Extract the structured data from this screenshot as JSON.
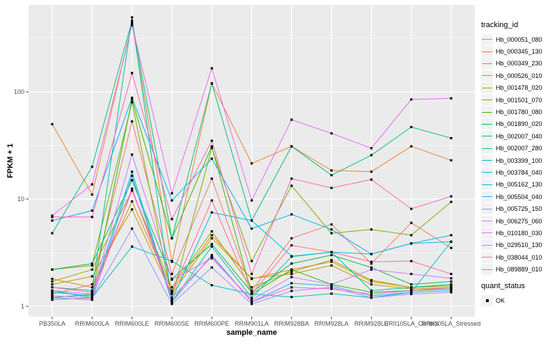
{
  "ui": {
    "panel_bg": "#EBEBEB",
    "grid_color": "#FFFFFF",
    "tick_color": "#333333",
    "tick_label_color": "#4D4D4D",
    "axis_title_color": "#000000",
    "legend_key_bg": "#F2F2F2",
    "point_color": "#000000"
  },
  "chart_data": {
    "type": "line",
    "title": "",
    "xlabel": "sample_name",
    "ylabel": "FPKM + 1",
    "y_scale": "log10",
    "y_ticks": [
      1,
      10,
      100
    ],
    "y_minor_ticks": [
      3.162,
      31.62,
      316.2
    ],
    "ylim": [
      0.8,
      640
    ],
    "grid": true,
    "legend_position": "right",
    "legend_title": "tracking_id",
    "quant_legend": {
      "title": "quant_status",
      "items": [
        {
          "label": "OK",
          "marker": "black-square"
        }
      ]
    },
    "categories": [
      "PB350LA",
      "RRIM600LA",
      "RRIM600LE",
      "RRIM600SE",
      "RRIM600PE",
      "RRIM901LA",
      "RRIM928BA",
      "RRIM928LA",
      "RRIM928LE",
      "RRII105LA_Control",
      "RRII105LA_Stressed"
    ],
    "series": [
      {
        "name": "Hb_000051_080",
        "color": "#F8766D",
        "values": [
          1.3,
          1.6,
          53,
          2.0,
          15.5,
          1.4,
          4.3,
          5.8,
          2.5,
          6.0,
          3.5
        ]
      },
      {
        "name": "Hb_000345_130",
        "color": "#EA8331",
        "values": [
          50,
          11,
          440,
          2.6,
          120,
          21.5,
          31,
          18.5,
          18,
          31,
          23
        ]
      },
      {
        "name": "Hb_000349_230",
        "color": "#D89000",
        "values": [
          1.8,
          1.5,
          9.5,
          1.4,
          4.6,
          1.8,
          2.2,
          2.6,
          1.7,
          1.5,
          1.6
        ]
      },
      {
        "name": "Hb_000526_010",
        "color": "#C09B00",
        "values": [
          1.6,
          1.9,
          8.0,
          1.3,
          4.3,
          1.82,
          2.0,
          2.4,
          1.6,
          1.45,
          1.5
        ]
      },
      {
        "name": "Hb_001478_020",
        "color": "#A3A500",
        "values": [
          1.7,
          2.2,
          12,
          1.5,
          5.0,
          1.5,
          2.1,
          2.7,
          1.75,
          1.5,
          1.55
        ]
      },
      {
        "name": "Hb_001501_070",
        "color": "#7CAE00",
        "values": [
          2.2,
          2.4,
          80,
          1.2,
          30,
          2.64,
          13.3,
          4.8,
          5.2,
          4.6,
          9.4
        ]
      },
      {
        "name": "Hb_001780_080",
        "color": "#39B600",
        "values": [
          1.2,
          1.3,
          85,
          4.3,
          31,
          1.3,
          2.2,
          1.6,
          1.35,
          1.4,
          1.45
        ]
      },
      {
        "name": "Hb_001890_020",
        "color": "#00BB4E",
        "values": [
          2.2,
          2.5,
          15,
          1.8,
          3.8,
          1.35,
          2.5,
          3.0,
          2.3,
          1.6,
          1.7
        ]
      },
      {
        "name": "Hb_002007_040",
        "color": "#00BF7D",
        "values": [
          4.8,
          20,
          460,
          4.3,
          120,
          6.3,
          31,
          16.7,
          25.7,
          47,
          37
        ]
      },
      {
        "name": "Hb_002007_280",
        "color": "#00C1A3",
        "values": [
          1.5,
          1.4,
          495,
          1.1,
          3.6,
          1.2,
          2.9,
          3.2,
          1.4,
          1.5,
          1.6
        ]
      },
      {
        "name": "Hb_003399_100",
        "color": "#00BFC4",
        "values": [
          1.4,
          1.2,
          3.6,
          2.64,
          1.57,
          1.3,
          1.22,
          1.31,
          1.2,
          1.35,
          4.0
        ]
      },
      {
        "name": "Hb_003784_040",
        "color": "#00BAE0",
        "values": [
          1.35,
          1.25,
          18,
          1.15,
          7.5,
          6.3,
          2.93,
          3.2,
          3.07,
          3.85,
          4.0
        ]
      },
      {
        "name": "Hb_005162_130",
        "color": "#00B0F6",
        "values": [
          6.3,
          7.8,
          88,
          9.7,
          23.8,
          5.3,
          7.2,
          5.2,
          3.07,
          3.85,
          4.6
        ]
      },
      {
        "name": "Hb_005504_040",
        "color": "#35A2FF",
        "values": [
          1.2,
          1.15,
          16.5,
          1.1,
          3.0,
          1.1,
          1.64,
          1.55,
          1.25,
          1.35,
          1.4
        ]
      },
      {
        "name": "Hb_005725_150",
        "color": "#9590FF",
        "values": [
          1.25,
          1.2,
          5.3,
          1.05,
          2.3,
          1.05,
          1.39,
          1.5,
          1.2,
          1.3,
          1.35
        ]
      },
      {
        "name": "Hb_006275_060",
        "color": "#C77CFF",
        "values": [
          1.4,
          1.3,
          26,
          1.77,
          2.8,
          1.15,
          1.87,
          1.6,
          2.2,
          2.0,
          1.82
        ]
      },
      {
        "name": "Hb_010180_030",
        "color": "#E76BF3",
        "values": [
          7.0,
          13.7,
          420,
          11.3,
          166,
          9.7,
          55,
          41,
          29.8,
          85,
          87
        ]
      },
      {
        "name": "Hb_029510_130",
        "color": "#FA62DB",
        "values": [
          1.15,
          1.2,
          12.5,
          1.2,
          2.9,
          1.1,
          1.5,
          1.45,
          1.3,
          1.4,
          1.5
        ]
      },
      {
        "name": "Hb_038044_010",
        "color": "#FF62BC",
        "values": [
          6.8,
          6.8,
          150,
          6.5,
          35,
          2.0,
          15.5,
          12.7,
          15.2,
          8.1,
          10.6
        ]
      },
      {
        "name": "Hb_089889_010",
        "color": "#FF6A98",
        "values": [
          1.5,
          1.35,
          12,
          1.35,
          9.7,
          1.3,
          3.7,
          3.2,
          2.6,
          2.64,
          2.0
        ]
      }
    ]
  }
}
